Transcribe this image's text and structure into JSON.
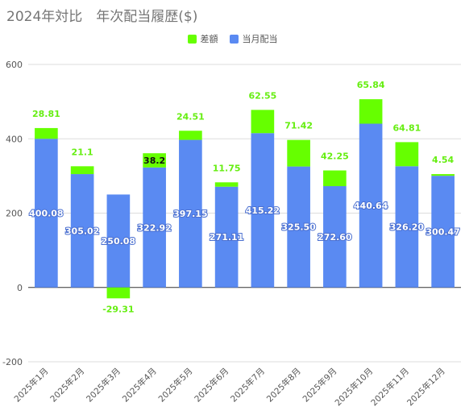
{
  "chart_data": {
    "type": "bar",
    "stacked": true,
    "title": "2024年対比　年次配当履歴($)",
    "categories": [
      "2025年1月",
      "2025年2月",
      "2025年3月",
      "2025年4月",
      "2025年5月",
      "2025年6月",
      "2025年7月",
      "2025年8月",
      "2025年9月",
      "2025年10月",
      "2025年11月",
      "2025年12月"
    ],
    "series": [
      {
        "name": "当月配当",
        "color": "#5a8af2",
        "values": [
          400.08,
          305.02,
          250.08,
          322.92,
          397.15,
          271.11,
          415.22,
          325.5,
          272.6,
          440.64,
          326.2,
          300.47
        ],
        "labels": [
          "400.08",
          "305.02",
          "250.08",
          "322.92",
          "397.15",
          "271.11",
          "415.22",
          "325.50",
          "272.60",
          "440.64",
          "326.20",
          "300.47"
        ]
      },
      {
        "name": "差額",
        "color": "#66ff00",
        "values": [
          28.81,
          21.1,
          -29.31,
          38.2,
          24.51,
          11.75,
          62.55,
          71.42,
          42.25,
          65.84,
          64.81,
          4.54
        ],
        "labels": [
          "28.81",
          "21.1",
          "-29.31",
          "38.2",
          "24.51",
          "11.75",
          "62.55",
          "71.42",
          "42.25",
          "65.84",
          "64.81",
          "4.54"
        ]
      }
    ],
    "ylim": [
      -200,
      600
    ],
    "yticks": [
      -200,
      0,
      200,
      400,
      600
    ],
    "grid": true,
    "legend_position": "top-center"
  }
}
